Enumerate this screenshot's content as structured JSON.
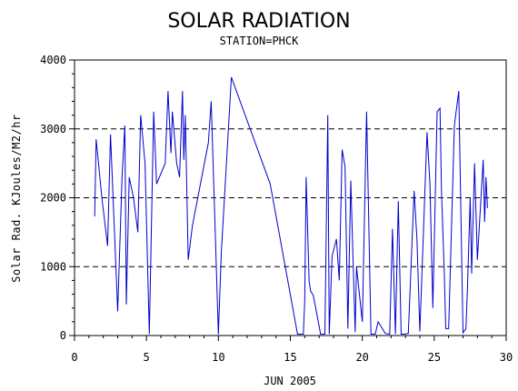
{
  "chart_data": {
    "type": "line",
    "title": "SOLAR RADIATION",
    "subtitle": "STATION=PHCK",
    "xlabel": "JUN 2005",
    "ylabel": "Solar Rad. KJoules/M2/hr",
    "xlim": [
      0,
      30
    ],
    "ylim": [
      0,
      4000
    ],
    "x_ticks": [
      0,
      5,
      10,
      15,
      20,
      25,
      30
    ],
    "y_ticks": [
      0,
      1000,
      2000,
      3000,
      4000
    ],
    "grid": "horizontal-dashed",
    "line_color": "#0000cc",
    "series": [
      {
        "x": [
          1.4,
          1.5,
          1.9,
          2.3,
          2.5,
          2.8,
          3.0,
          3.3,
          3.5,
          3.6,
          3.8,
          4.1,
          4.4,
          4.6,
          4.9,
          5.2,
          5.5,
          5.7,
          6.3,
          6.5,
          6.7,
          6.8,
          7.1,
          7.3,
          7.5,
          7.6,
          7.7,
          7.9,
          8.2,
          9.3,
          9.5,
          10.0,
          10.2,
          10.9,
          13.6,
          15.5,
          15.9,
          16.0,
          16.1,
          16.3,
          16.4,
          16.6,
          17.1,
          17.4,
          17.6,
          17.7,
          17.9,
          18.2,
          18.4,
          18.6,
          18.8,
          19.0,
          19.2,
          19.5,
          19.6,
          20.0,
          20.3,
          20.6,
          20.9,
          21.1,
          21.6,
          21.9,
          22.1,
          22.3,
          22.5,
          22.7,
          22.9,
          23.2,
          23.6,
          23.8,
          24.0,
          24.5,
          24.7,
          24.9,
          25.2,
          25.4,
          25.5,
          25.7,
          25.8,
          26.0,
          26.4,
          26.7,
          27.0,
          27.2,
          27.3,
          27.5,
          27.6,
          27.8,
          28.0,
          28.4,
          28.5,
          28.6,
          28.7
        ],
        "y": [
          1730,
          2850,
          2000,
          1300,
          2920,
          1400,
          350,
          2300,
          3050,
          450,
          2300,
          2000,
          1500,
          3200,
          2500,
          20,
          3250,
          2200,
          2500,
          3550,
          2650,
          3250,
          2500,
          2300,
          3550,
          2550,
          3200,
          1100,
          1600,
          2800,
          3400,
          20,
          1200,
          3750,
          2200,
          20,
          20,
          500,
          2300,
          800,
          650,
          580,
          20,
          20,
          3200,
          20,
          1150,
          1400,
          800,
          2700,
          2450,
          100,
          2250,
          50,
          1000,
          200,
          3250,
          20,
          20,
          200,
          30,
          20,
          1550,
          20,
          1950,
          20,
          20,
          30,
          2100,
          1400,
          60,
          2950,
          2200,
          400,
          3250,
          3300,
          2100,
          900,
          100,
          100,
          3050,
          3550,
          40,
          100,
          650,
          2000,
          900,
          2500,
          1100,
          2550,
          1650,
          2300,
          1850
        ]
      }
    ]
  }
}
